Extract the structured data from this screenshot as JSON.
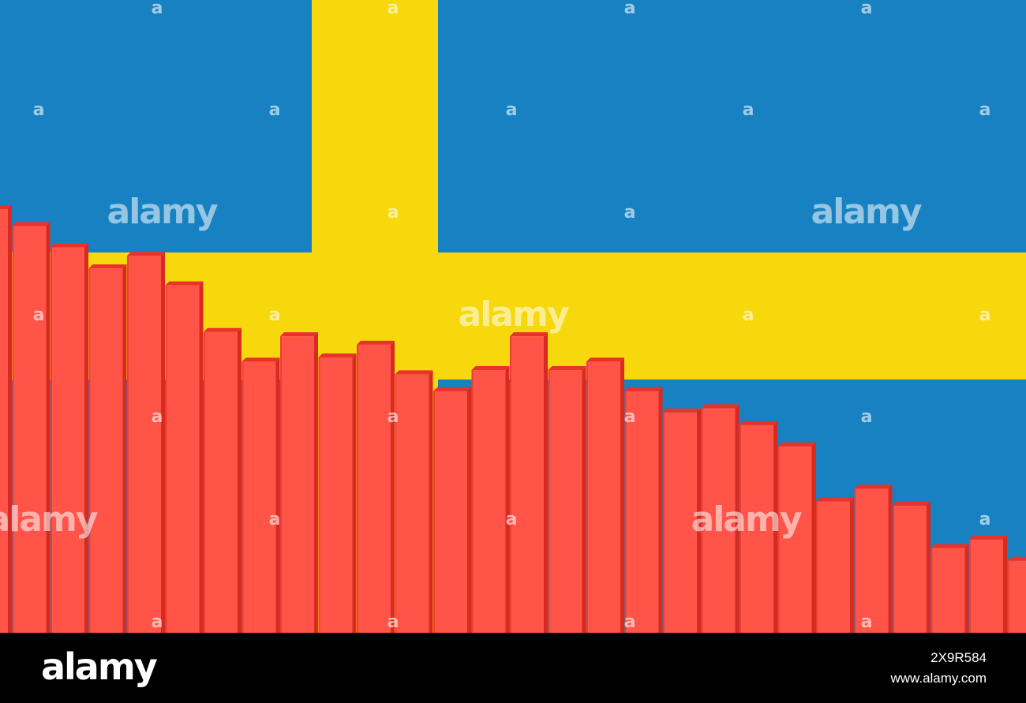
{
  "colors": {
    "flag_blue": "#1781C1",
    "flag_yellow": "#F6D80D",
    "bar_front": "#FF5447",
    "bar_top": "#E8322A",
    "bar_side": "#D92A22"
  },
  "watermark": {
    "logo_text": "alamy",
    "marker": "a"
  },
  "footer": {
    "logo_text": "alamy",
    "image_id": "2X9R584",
    "url": "www.alamy.com"
  },
  "chart_data": {
    "type": "bar",
    "title": "",
    "xlabel": "",
    "ylabel": "",
    "legend": "none",
    "grid": false,
    "ylim": [
      0,
      100
    ],
    "values": [
      100,
      96,
      91,
      86,
      89,
      82,
      71,
      64,
      70,
      65,
      68,
      61,
      57,
      62,
      70,
      62,
      64,
      57,
      52,
      53,
      49,
      44,
      31,
      34,
      30,
      20,
      22,
      17
    ]
  }
}
